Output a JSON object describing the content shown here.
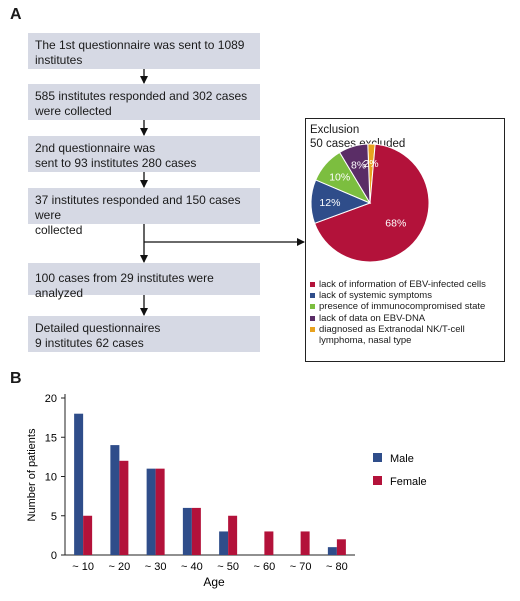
{
  "panel_a": {
    "letter": "A",
    "flow_steps": [
      {
        "line1": "The 1st questionnaire was sent to 1089",
        "line2": "institutes"
      },
      {
        "line1": "585 institutes responded and 302 cases",
        "line2": "were collected"
      },
      {
        "line1": "2nd questionnaire was",
        "line2": "sent to 93 institutes 280 cases"
      },
      {
        "line1": "37 institutes responded and 150 cases were",
        "line2": "collected"
      },
      {
        "line1": "100 cases from 29 institutes were analyzed",
        "line2": ""
      },
      {
        "line1": "Detailed questionnaires",
        "line2": "9 institutes 62 cases"
      }
    ],
    "exclusion": {
      "title": "Exclusion",
      "subtitle": "50 cases excluded"
    }
  },
  "panel_b": {
    "letter": "B"
  },
  "chart_data": [
    {
      "type": "pie",
      "labels": [
        "lack of information of EBV-infected cells",
        "lack of systemic symptoms",
        "presence of immunocompromised state",
        "lack of data on EBV-DNA",
        "diagnosed as Extranodal NK/T-cell lymphoma, nasal type"
      ],
      "values": [
        68,
        12,
        10,
        8,
        2
      ],
      "value_labels": [
        "68%",
        "12%",
        "10%",
        "8%",
        "2%"
      ],
      "colors": [
        "#b3123a",
        "#2f4d8a",
        "#7cbe3f",
        "#5a2d66",
        "#e8a21e"
      ]
    },
    {
      "type": "bar",
      "categories": [
        "~ 10",
        "~ 20",
        "~ 30",
        "~ 40",
        "~ 50",
        "~ 60",
        "~ 70",
        "~ 80"
      ],
      "series": [
        {
          "name": "Male",
          "values": [
            18,
            14,
            11,
            6,
            3,
            0,
            0,
            1
          ],
          "color": "#2f4d8a"
        },
        {
          "name": "Female",
          "values": [
            5,
            12,
            11,
            6,
            5,
            3,
            3,
            2
          ],
          "color": "#b3123a"
        }
      ],
      "xlabel": "Age",
      "ylabel": "Number of patients",
      "ylim": [
        0,
        20
      ],
      "yticks": [
        0,
        5,
        10,
        15,
        20
      ],
      "legend_position": "right"
    }
  ]
}
